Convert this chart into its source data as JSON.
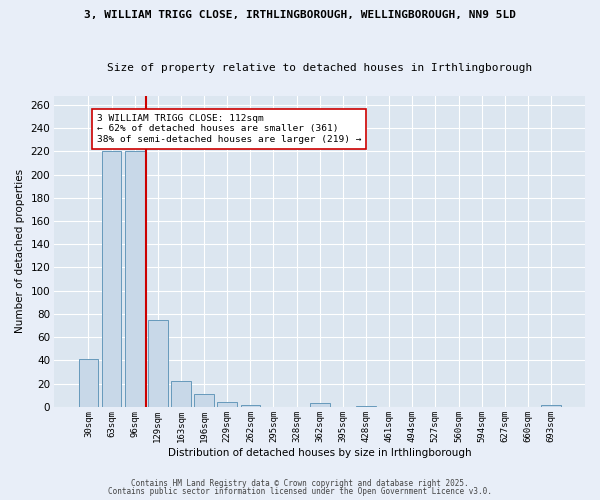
{
  "title_line1": "3, WILLIAM TRIGG CLOSE, IRTHLINGBOROUGH, WELLINGBOROUGH, NN9 5LD",
  "title_line2": "Size of property relative to detached houses in Irthlingborough",
  "xlabel": "Distribution of detached houses by size in Irthlingborough",
  "ylabel": "Number of detached properties",
  "categories": [
    "30sqm",
    "63sqm",
    "96sqm",
    "129sqm",
    "163sqm",
    "196sqm",
    "229sqm",
    "262sqm",
    "295sqm",
    "328sqm",
    "362sqm",
    "395sqm",
    "428sqm",
    "461sqm",
    "494sqm",
    "527sqm",
    "560sqm",
    "594sqm",
    "627sqm",
    "660sqm",
    "693sqm"
  ],
  "values": [
    41,
    220,
    220,
    75,
    22,
    11,
    4,
    2,
    0,
    0,
    3,
    0,
    1,
    0,
    0,
    0,
    0,
    0,
    0,
    0,
    2
  ],
  "bar_color": "#c8d8e8",
  "bar_edge_color": "#6699bb",
  "vline_x": 2.5,
  "vline_color": "#cc0000",
  "annotation_text": "3 WILLIAM TRIGG CLOSE: 112sqm\n← 62% of detached houses are smaller (361)\n38% of semi-detached houses are larger (219) →",
  "annotation_box_color": "#ffffff",
  "annotation_box_edge": "#cc0000",
  "ylim": [
    0,
    268
  ],
  "yticks": [
    0,
    20,
    40,
    60,
    80,
    100,
    120,
    140,
    160,
    180,
    200,
    220,
    240,
    260
  ],
  "fig_bg_color": "#e8eef8",
  "plot_bg_color": "#dce6f0",
  "grid_color": "#ffffff",
  "footer_line1": "Contains HM Land Registry data © Crown copyright and database right 2025.",
  "footer_line2": "Contains public sector information licensed under the Open Government Licence v3.0."
}
